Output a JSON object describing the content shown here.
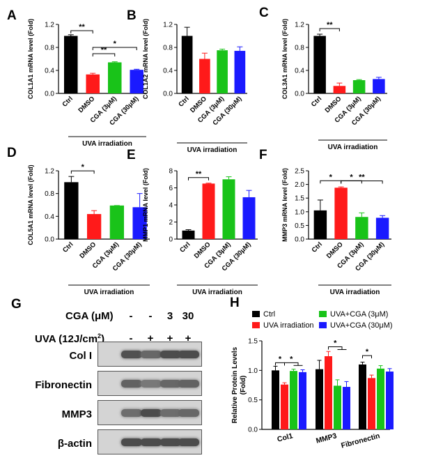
{
  "colors": {
    "black": "#000000",
    "red": "#ff1a1a",
    "green": "#19c319",
    "blue": "#1a1aff"
  },
  "uva_label": "UVA irradiation",
  "chart_data": [
    {
      "panel": "A",
      "type": "bar",
      "ylabel": "COL1A1 mRNA level (Fold)",
      "categories": [
        "Ctrl",
        "DMSO",
        "CGA (3μM)",
        "CGA (30μM)"
      ],
      "values": [
        1.0,
        0.33,
        0.54,
        0.41
      ],
      "errors": [
        0.02,
        0.02,
        0.01,
        0.01
      ],
      "ylim": [
        0,
        1.2
      ],
      "yticks": [
        "0.0",
        "0.4",
        "0.8",
        "1.2"
      ],
      "significance": [
        {
          "from": 0,
          "to": 1,
          "label": "**"
        },
        {
          "from": 1,
          "to": 2,
          "label": "**"
        },
        {
          "from": 1,
          "to": 3,
          "label": "*"
        }
      ]
    },
    {
      "panel": "B",
      "type": "bar",
      "ylabel": "COL1A2 mRNA level (Fold)",
      "categories": [
        "Ctrl",
        "DMSO",
        "CGA (3μM)",
        "CGA (30μM)"
      ],
      "values": [
        1.0,
        0.6,
        0.75,
        0.74
      ],
      "errors": [
        0.15,
        0.1,
        0.02,
        0.07
      ],
      "ylim": [
        0,
        1.2
      ],
      "yticks": [
        "0.0",
        "0.4",
        "0.8",
        "1.2"
      ],
      "significance": []
    },
    {
      "panel": "C",
      "type": "bar",
      "ylabel": "COL3A1 mRNA level (Fold)",
      "categories": [
        "Ctrl",
        "DMSO",
        "CGA (3μM)",
        "CGA (30μM)"
      ],
      "values": [
        1.0,
        0.13,
        0.23,
        0.25
      ],
      "errors": [
        0.03,
        0.05,
        0.01,
        0.03
      ],
      "ylim": [
        0,
        1.2
      ],
      "yticks": [
        "0.0",
        "0.4",
        "0.8",
        "1.2"
      ],
      "significance": [
        {
          "from": 0,
          "to": 1,
          "label": "**"
        }
      ]
    },
    {
      "panel": "D",
      "type": "bar",
      "ylabel": "COL5A1 mRNA level (Fold)",
      "categories": [
        "Ctrl",
        "DMSO",
        "CGA (3μM)",
        "CGA (30μM)"
      ],
      "values": [
        1.0,
        0.44,
        0.59,
        0.56
      ],
      "errors": [
        0.1,
        0.06,
        0.0,
        0.24
      ],
      "ylim": [
        0,
        1.2
      ],
      "yticks": [
        "0.0",
        "0.4",
        "0.8",
        "1.2"
      ],
      "significance": [
        {
          "from": 0,
          "to": 1,
          "label": "*"
        }
      ]
    },
    {
      "panel": "E",
      "type": "bar",
      "ylabel": "MMP1 mRNA level (Fold)",
      "categories": [
        "Ctrl",
        "DMSO",
        "CGA (3μM)",
        "CGA (30μM)"
      ],
      "values": [
        1.0,
        6.5,
        7.0,
        4.9
      ],
      "errors": [
        0.1,
        0.05,
        0.3,
        0.8
      ],
      "ylim": [
        0,
        8
      ],
      "yticks": [
        "0",
        "2",
        "4",
        "6",
        "8"
      ],
      "significance": [
        {
          "from": 0,
          "to": 1,
          "label": "**"
        }
      ]
    },
    {
      "panel": "F",
      "type": "bar",
      "ylabel": "MMP3 mRNA level (Fold)",
      "categories": [
        "Ctrl",
        "DMSO",
        "CGA (3μM)",
        "CGA (30μM)"
      ],
      "values": [
        1.05,
        1.88,
        0.81,
        0.78
      ],
      "errors": [
        0.38,
        0.03,
        0.15,
        0.08
      ],
      "ylim": [
        0,
        2.5
      ],
      "yticks": [
        "0.0",
        "0.5",
        "1.0",
        "1.5",
        "2.0",
        "2.5"
      ],
      "significance": [
        {
          "from": 0,
          "to": 1,
          "label": "*"
        },
        {
          "from": 1,
          "to": 2,
          "label": "*"
        },
        {
          "from": 1,
          "to": 3,
          "label": "**"
        }
      ]
    },
    {
      "panel": "H",
      "type": "bar",
      "ylabel": "Relative Protein Levels (Fold)",
      "categories": [
        "Col1",
        "MMP3",
        "Fibronectin"
      ],
      "series": [
        {
          "name": "Ctrl",
          "values": [
            1.0,
            1.02,
            1.1
          ],
          "errors": [
            0.07,
            0.15,
            0.04
          ]
        },
        {
          "name": "UVA irradiation",
          "values": [
            0.76,
            1.24,
            0.87
          ],
          "errors": [
            0.03,
            0.08,
            0.05
          ]
        },
        {
          "name": "UVA+CGA (3μM)",
          "values": [
            0.99,
            0.74,
            1.03
          ],
          "errors": [
            0.03,
            0.1,
            0.05
          ]
        },
        {
          "name": "UVA+CGA (30μM)",
          "values": [
            0.97,
            0.72,
            0.98
          ],
          "errors": [
            0.04,
            0.09,
            0.05
          ]
        }
      ],
      "ylim": [
        0,
        1.5
      ],
      "yticks": [
        "0.0",
        "0.5",
        "1.0",
        "1.5"
      ],
      "legend": "top"
    }
  ],
  "western": {
    "panel": "G",
    "cga_label": "CGA (μM)",
    "cga_values": [
      "-",
      "-",
      "3",
      "30"
    ],
    "uva_label": "UVA (12J/cm²)",
    "uva_values": [
      "-",
      "+",
      "+",
      "+"
    ],
    "bands": [
      "Col I",
      "Fibronectin",
      "MMP3",
      "β-actin"
    ]
  }
}
